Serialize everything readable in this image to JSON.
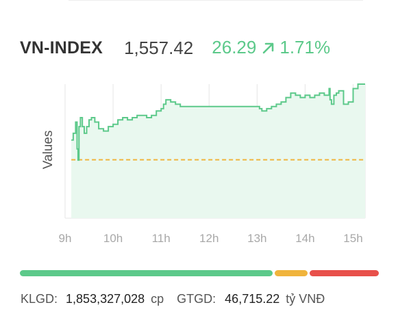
{
  "index": {
    "name": "VN-INDEX",
    "value": "1,557.42",
    "change": "26.29",
    "percent": "1.71%",
    "trend_icon": "arrow-up-right-icon",
    "up_color": "#5cc98a"
  },
  "chart_data": {
    "type": "area",
    "ylabel": "Values",
    "xlabel": "",
    "x_ticks": [
      "9h",
      "10h",
      "11h",
      "12h",
      "13h",
      "14h",
      "15h"
    ],
    "x_range": [
      9,
      15.25
    ],
    "y_range": [
      1505,
      1565
    ],
    "reference": {
      "value": 1531.13,
      "style": "dashed",
      "color": "#f0b43c"
    },
    "line_color": "#5cc98a",
    "fill_color": "#e9f8ef",
    "grid": true,
    "x": [
      9.13,
      9.17,
      9.22,
      9.25,
      9.27,
      9.29,
      9.32,
      9.36,
      9.4,
      9.45,
      9.5,
      9.55,
      9.62,
      9.7,
      9.8,
      9.9,
      10.0,
      10.1,
      10.2,
      10.3,
      10.4,
      10.5,
      10.6,
      10.7,
      10.8,
      10.9,
      11.0,
      11.05,
      11.1,
      11.2,
      11.3,
      11.4,
      11.5,
      12.0,
      12.5,
      13.0,
      13.05,
      13.1,
      13.2,
      13.3,
      13.4,
      13.5,
      13.6,
      13.7,
      13.8,
      13.9,
      14.0,
      14.1,
      14.2,
      14.3,
      14.4,
      14.5,
      14.52,
      14.55,
      14.6,
      14.65,
      14.7,
      14.8,
      14.9,
      15.0,
      15.1,
      15.25
    ],
    "y": [
      1540,
      1543,
      1548,
      1536,
      1531,
      1546,
      1550,
      1546,
      1543,
      1546,
      1549,
      1550,
      1548,
      1545,
      1544,
      1546,
      1547,
      1549,
      1550,
      1549,
      1550,
      1551,
      1551,
      1550,
      1551,
      1553,
      1554,
      1556,
      1558,
      1557,
      1556,
      1555,
      1555,
      1555,
      1555,
      1555,
      1554,
      1553,
      1554,
      1555,
      1556,
      1557,
      1559,
      1561,
      1560,
      1559,
      1560,
      1559,
      1560,
      1561,
      1560,
      1563,
      1558,
      1556,
      1560,
      1561,
      1562,
      1556,
      1557,
      1563,
      1565,
      1565
    ]
  },
  "breadth": {
    "advancers": 372,
    "unchanged": 48,
    "decliners": 102,
    "advance_color": "#5cc98a",
    "unchanged_color": "#f0b43c",
    "decline_color": "#e8504a"
  },
  "footer": {
    "volume_label": "KLGD:",
    "volume_value": "1,853,327,028",
    "volume_unit": "cp",
    "turnover_label": "GTGD:",
    "turnover_value": "46,715.22",
    "turnover_unit": "tỷ VNĐ"
  }
}
